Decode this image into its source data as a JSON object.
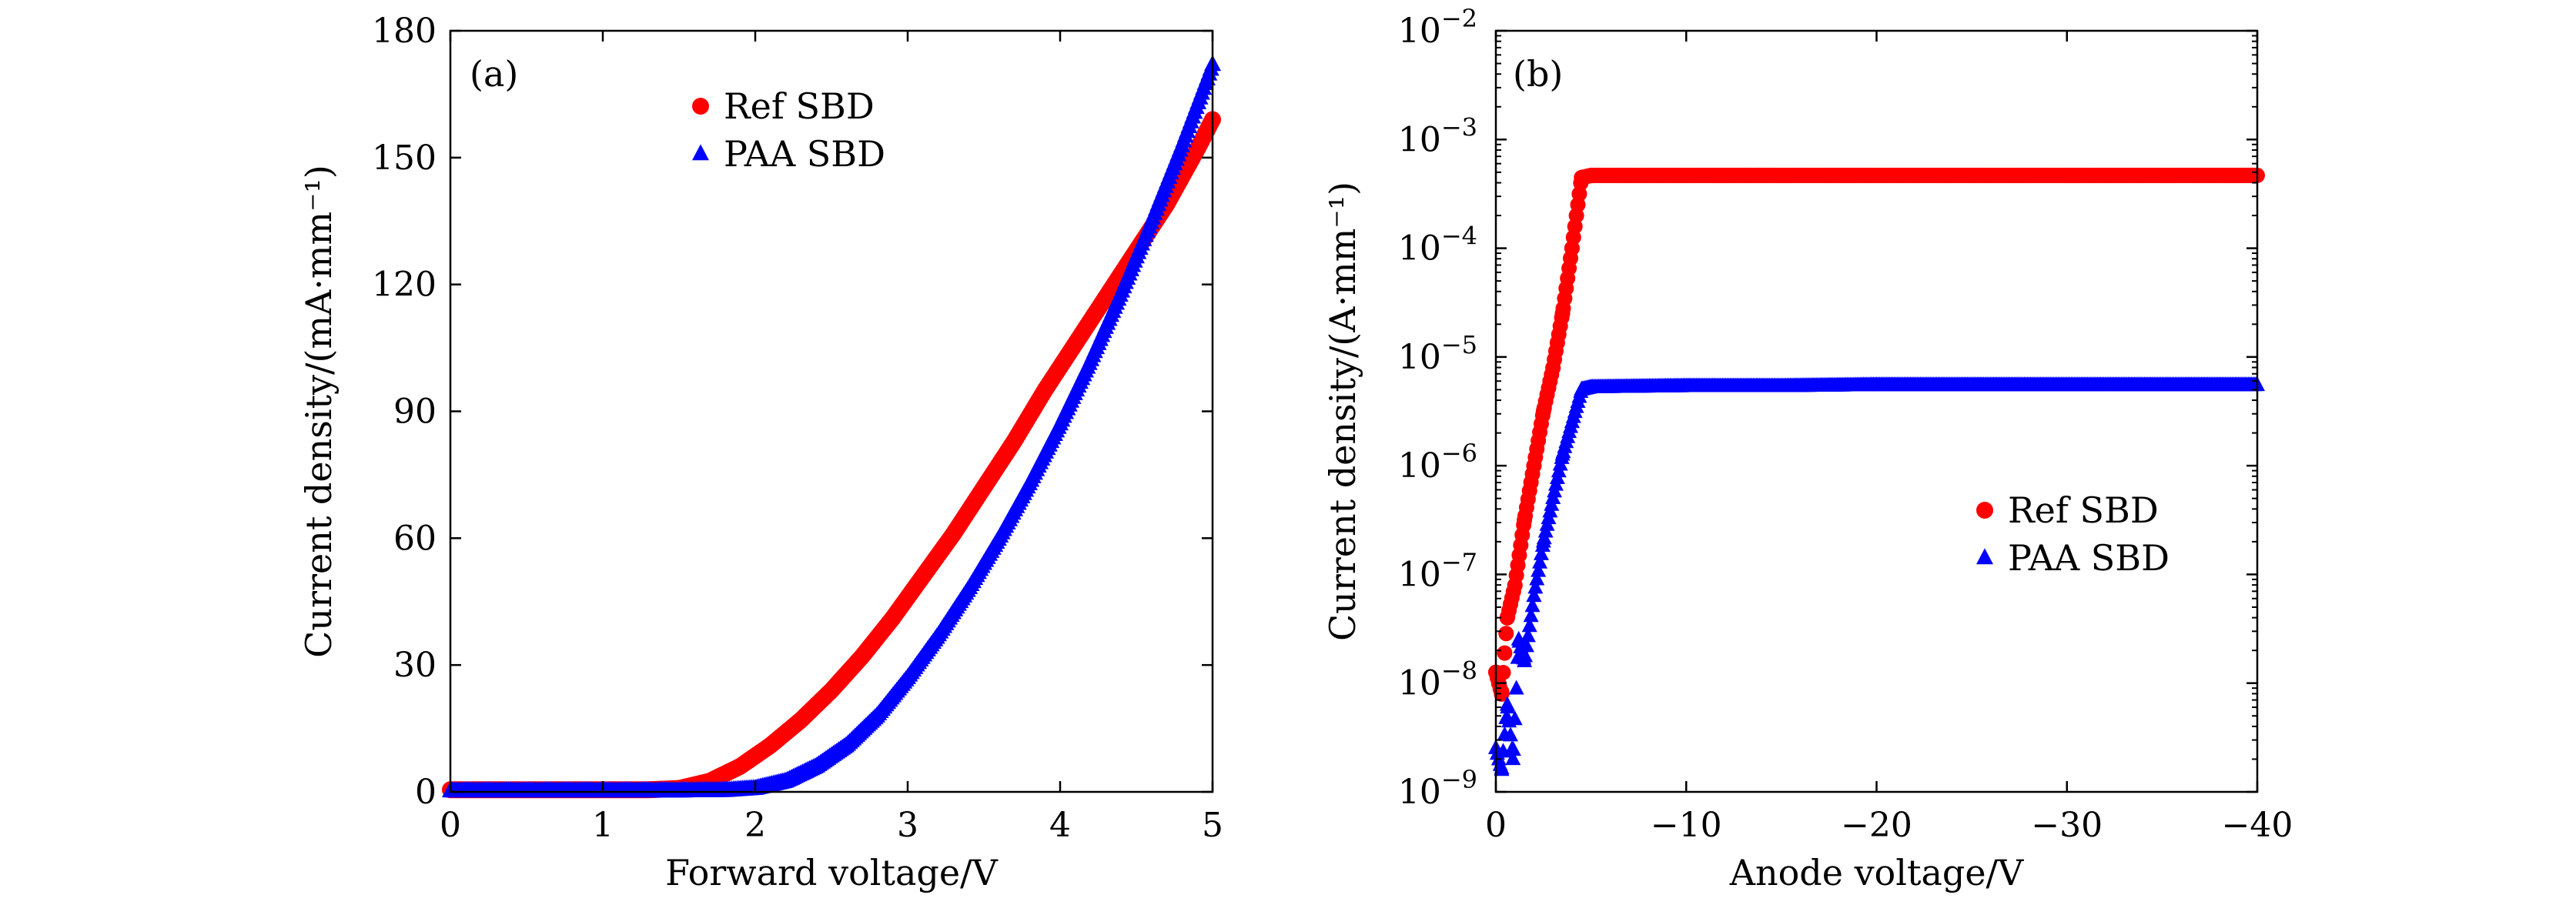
{
  "chart_data": [
    {
      "type": "scatter",
      "panel": "(a)",
      "xlabel": "Forward voltage/V",
      "ylabel": "Current density/(mA·mm⁻¹)",
      "xlim": [
        0,
        5
      ],
      "ylim": [
        0,
        180
      ],
      "xticks": [
        "0",
        "1",
        "2",
        "3",
        "4",
        "5"
      ],
      "yticks": [
        "0",
        "30",
        "60",
        "90",
        "120",
        "150",
        "180"
      ],
      "legend_position": "top-center",
      "series": [
        {
          "name": "Ref SBD",
          "marker": "circle",
          "color": "#ff0000",
          "x": [
            0,
            0.5,
            1.0,
            1.3,
            1.5,
            1.7,
            1.9,
            2.1,
            2.3,
            2.5,
            2.7,
            2.9,
            3.1,
            3.3,
            3.5,
            3.7,
            3.9,
            4.1,
            4.3,
            4.5,
            4.7,
            4.9,
            5.0
          ],
          "y": [
            0.5,
            0.5,
            0.5,
            0.5,
            0.8,
            2.5,
            6,
            11,
            17,
            24,
            32,
            41,
            51,
            61,
            72,
            83,
            95,
            106,
            117,
            128,
            139,
            152,
            159
          ]
        },
        {
          "name": "PAA SBD",
          "marker": "triangle",
          "color": "#0000ff",
          "x": [
            0,
            0.5,
            1.0,
            1.5,
            1.8,
            2.0,
            2.2,
            2.4,
            2.6,
            2.8,
            3.0,
            3.2,
            3.4,
            3.6,
            3.8,
            4.0,
            4.2,
            4.4,
            4.6,
            4.8,
            5.0
          ],
          "y": [
            0.2,
            0.2,
            0.2,
            0.2,
            0.3,
            0.8,
            2.5,
            6,
            11,
            18,
            27,
            37,
            48,
            60,
            73,
            87,
            102,
            118,
            135,
            153,
            172
          ]
        }
      ]
    },
    {
      "type": "scatter",
      "panel": "(b)",
      "xlabel": "Anode voltage/V",
      "ylabel": "Current density/(A·mm⁻¹)",
      "xlim": [
        0,
        -40
      ],
      "ylim_log10": [
        -9,
        -2
      ],
      "xticks": [
        "0",
        "−10",
        "−20",
        "−30",
        "−40"
      ],
      "ytick_base": "10",
      "ytick_exponents": [
        "−9",
        "−8",
        "−7",
        "−6",
        "−5",
        "−4",
        "−3",
        "−2"
      ],
      "legend_position": "center-right",
      "series": [
        {
          "name": "Ref SBD",
          "marker": "circle",
          "color": "#ff0000",
          "x": [
            0,
            -0.3,
            -0.6,
            -1.0,
            -1.5,
            -2.0,
            -2.5,
            -3.0,
            -3.5,
            -4.0,
            -4.5,
            -5,
            -10,
            -15,
            -20,
            -25,
            -30,
            -35,
            -40
          ],
          "log10_y": [
            -7.9,
            -8.1,
            -7.4,
            -7.1,
            -6.5,
            -6.0,
            -5.5,
            -5.1,
            -4.6,
            -4.0,
            -3.35,
            -3.33,
            -3.33,
            -3.33,
            -3.33,
            -3.33,
            -3.33,
            -3.33,
            -3.33
          ]
        },
        {
          "name": "PAA SBD",
          "marker": "triangle",
          "color": "#0000ff",
          "x": [
            0,
            -0.3,
            -0.6,
            -0.9,
            -1.2,
            -1.5,
            -2.0,
            -2.5,
            -3.0,
            -3.5,
            -4.0,
            -4.5,
            -5,
            -10,
            -15,
            -20,
            -25,
            -30,
            -35,
            -40
          ],
          "log10_y": [
            -8.6,
            -8.8,
            -8.2,
            -8.7,
            -7.6,
            -7.8,
            -7.2,
            -6.7,
            -6.3,
            -5.9,
            -5.6,
            -5.3,
            -5.28,
            -5.27,
            -5.27,
            -5.26,
            -5.26,
            -5.26,
            -5.26,
            -5.26
          ]
        }
      ]
    }
  ]
}
